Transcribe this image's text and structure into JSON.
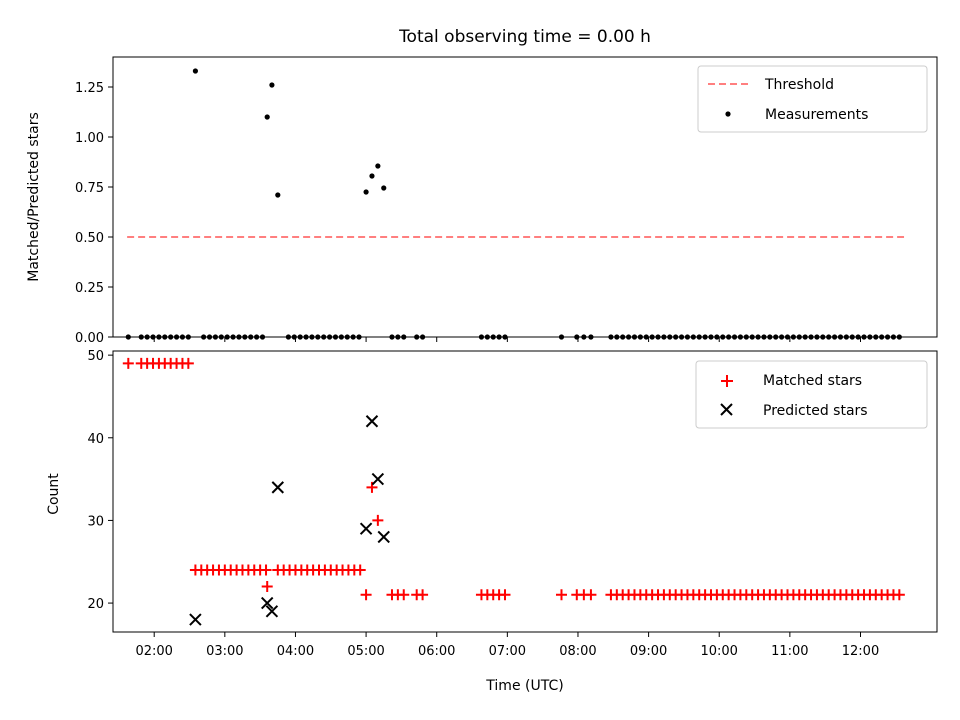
{
  "chart_data": [
    {
      "type": "scatter",
      "title": "Total observing time = 0.00 h",
      "xlabel": "",
      "ylabel": "Matched/Predicted stars",
      "ylim": [
        0,
        1.4
      ],
      "yticks": [
        0.0,
        0.25,
        0.5,
        0.75,
        1.0,
        1.25
      ],
      "ytick_labels": [
        "0.00",
        "0.25",
        "0.50",
        "0.75",
        "1.00",
        "1.25"
      ],
      "xlim": [
        "01:25",
        "13:05"
      ],
      "grid": false,
      "legend": "top-right",
      "threshold": {
        "name": "Threshold",
        "value": 0.5,
        "x": [
          "01:37",
          "12:37"
        ],
        "color": "#ff7f7f"
      },
      "measurements": {
        "name": "Measurements",
        "color": "#000000",
        "points": [
          [
            "02:35",
            1.33
          ],
          [
            "03:36",
            1.1
          ],
          [
            "03:40",
            1.26
          ],
          [
            "03:45",
            0.71
          ],
          [
            "05:00",
            0.725
          ],
          [
            "05:05",
            0.805
          ],
          [
            "05:10",
            0.855
          ],
          [
            "05:15",
            0.745
          ]
        ],
        "zero_times": [
          "01:38",
          "01:49",
          "01:54",
          "01:59",
          "02:04",
          "02:09",
          "02:14",
          "02:19",
          "02:24",
          "02:29",
          "02:42",
          "02:47",
          "02:52",
          "02:57",
          "03:02",
          "03:07",
          "03:12",
          "03:17",
          "03:22",
          "03:27",
          "03:32",
          "03:54",
          "03:59",
          "04:04",
          "04:09",
          "04:14",
          "04:19",
          "04:24",
          "04:29",
          "04:34",
          "04:39",
          "04:44",
          "04:49",
          "04:54",
          "05:22",
          "05:27",
          "05:32",
          "05:43",
          "05:48",
          "06:38",
          "06:43",
          "06:48",
          "06:53",
          "06:58",
          "07:46",
          "07:59",
          "08:05",
          "08:11",
          "08:28",
          "08:33",
          "08:38",
          "08:43",
          "08:48",
          "08:53",
          "08:58",
          "09:03",
          "09:08",
          "09:13",
          "09:18",
          "09:23",
          "09:28",
          "09:33",
          "09:38",
          "09:43",
          "09:48",
          "09:53",
          "09:58",
          "10:03",
          "10:08",
          "10:13",
          "10:18",
          "10:23",
          "10:28",
          "10:33",
          "10:38",
          "10:43",
          "10:48",
          "10:53",
          "10:58",
          "11:03",
          "11:08",
          "11:13",
          "11:18",
          "11:23",
          "11:28",
          "11:33",
          "11:38",
          "11:43",
          "11:48",
          "11:53",
          "11:58",
          "12:03",
          "12:08",
          "12:13",
          "12:18",
          "12:23",
          "12:28",
          "12:33"
        ]
      }
    },
    {
      "type": "scatter",
      "title": "",
      "xlabel": "Time (UTC)",
      "ylabel": "Count",
      "ylim": [
        16.5,
        50.5
      ],
      "yticks": [
        20,
        30,
        40,
        50
      ],
      "ytick_labels": [
        "20",
        "30",
        "40",
        "50"
      ],
      "xlim": [
        "01:25",
        "13:05"
      ],
      "xticks": [
        "02:00",
        "03:00",
        "04:00",
        "05:00",
        "06:00",
        "07:00",
        "08:00",
        "09:00",
        "10:00",
        "11:00",
        "12:00"
      ],
      "xtick_labels": [
        "02:00",
        "03:00",
        "04:00",
        "05:00",
        "06:00",
        "07:00",
        "08:00",
        "09:00",
        "10:00",
        "11:00",
        "12:00"
      ],
      "grid": false,
      "legend": "top-right",
      "series": [
        {
          "name": "Matched stars",
          "marker": "plus",
          "color": "#ff0000",
          "groups": [
            {
              "value": 49,
              "times": [
                "01:38",
                "01:49",
                "01:54",
                "01:59",
                "02:04",
                "02:09",
                "02:14",
                "02:19",
                "02:24",
                "02:29"
              ]
            },
            {
              "value": 24,
              "times": [
                "02:35",
                "02:40",
                "02:45",
                "02:50",
                "02:55",
                "03:00",
                "03:05",
                "03:10",
                "03:15",
                "03:20",
                "03:25",
                "03:30",
                "03:35",
                "03:45",
                "03:50",
                "03:55",
                "04:00",
                "04:05",
                "04:10",
                "04:15",
                "04:20",
                "04:25",
                "04:30",
                "04:35",
                "04:40",
                "04:45",
                "04:50",
                "04:55"
              ]
            },
            {
              "value": 22,
              "times": [
                "03:36"
              ]
            },
            {
              "value": 34,
              "times": [
                "05:05"
              ]
            },
            {
              "value": 30,
              "times": [
                "05:10"
              ]
            },
            {
              "value": 21,
              "times": [
                "05:00",
                "05:22",
                "05:27",
                "05:32",
                "05:43",
                "05:48",
                "06:38",
                "06:43",
                "06:48",
                "06:53",
                "06:58",
                "07:46",
                "07:59",
                "08:05",
                "08:11",
                "08:28",
                "08:33",
                "08:38",
                "08:43",
                "08:48",
                "08:53",
                "08:58",
                "09:03",
                "09:08",
                "09:13",
                "09:18",
                "09:23",
                "09:28",
                "09:33",
                "09:38",
                "09:43",
                "09:48",
                "09:53",
                "09:58",
                "10:03",
                "10:08",
                "10:13",
                "10:18",
                "10:23",
                "10:28",
                "10:33",
                "10:38",
                "10:43",
                "10:48",
                "10:53",
                "10:58",
                "11:03",
                "11:08",
                "11:13",
                "11:18",
                "11:23",
                "11:28",
                "11:33",
                "11:38",
                "11:43",
                "11:48",
                "11:53",
                "11:58",
                "12:03",
                "12:08",
                "12:13",
                "12:18",
                "12:23",
                "12:28",
                "12:33"
              ]
            }
          ]
        },
        {
          "name": "Predicted stars",
          "marker": "x",
          "color": "#000000",
          "points": [
            [
              "02:35",
              18
            ],
            [
              "03:36",
              20
            ],
            [
              "03:40",
              19
            ],
            [
              "03:45",
              34
            ],
            [
              "05:00",
              29
            ],
            [
              "05:05",
              42
            ],
            [
              "05:10",
              35
            ],
            [
              "05:15",
              28
            ]
          ]
        }
      ]
    }
  ]
}
